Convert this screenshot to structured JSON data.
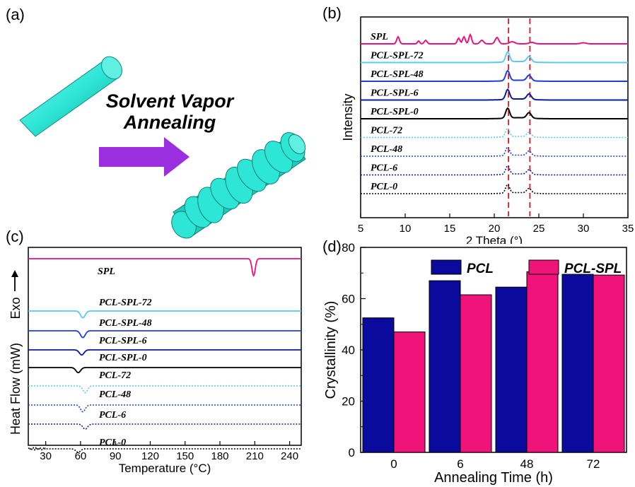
{
  "panels": {
    "a": "(a)",
    "b": "(b)",
    "c": "(c)",
    "d": "(d)"
  },
  "schematic": {
    "line1": "Solvent Vapor",
    "line2": "Annealing",
    "rod_color": "#2ee6d6",
    "arrow_color": "#9b2fe0"
  },
  "chart_data": [
    {
      "id": "b",
      "type": "line",
      "xlabel": "2 Theta (°)",
      "ylabel": "Intensity",
      "xlim": [
        5,
        35
      ],
      "xticks": [
        5,
        10,
        15,
        20,
        25,
        30,
        35
      ],
      "reference_lines": [
        21.6,
        24.0
      ],
      "series": [
        {
          "name": "SPL",
          "color": "#e8147a",
          "dashed": false,
          "offset": 10
        },
        {
          "name": "PCL-SPL-72",
          "color": "#5bc8f5",
          "dashed": false,
          "offset": 9
        },
        {
          "name": "PCL-SPL-48",
          "color": "#1e3fd6",
          "dashed": false,
          "offset": 8
        },
        {
          "name": "PCL-SPL-6",
          "color": "#0a1a9a",
          "dashed": false,
          "offset": 7
        },
        {
          "name": "PCL-SPL-0",
          "color": "#000000",
          "dashed": false,
          "offset": 6
        },
        {
          "name": "PCL-72",
          "color": "#5bc8f5",
          "dashed": true,
          "offset": 5
        },
        {
          "name": "PCL-48",
          "color": "#1e3fd6",
          "dashed": true,
          "offset": 4
        },
        {
          "name": "PCL-6",
          "color": "#0a1a9a",
          "dashed": true,
          "offset": 3
        },
        {
          "name": "PCL-0",
          "color": "#000000",
          "dashed": true,
          "offset": 2
        }
      ]
    },
    {
      "id": "c",
      "type": "line",
      "xlabel": "Temperature (°C)",
      "ylabel": "Heat Flow (mW)",
      "ylabel_exo": "Exo",
      "xlim": [
        15,
        250
      ],
      "xticks": [
        30,
        60,
        90,
        120,
        150,
        180,
        210,
        240
      ],
      "series": [
        {
          "name": "SPL",
          "color": "#e8147a",
          "dashed": false,
          "dip_x": 209,
          "depth": 10
        },
        {
          "name": "PCL-SPL-72",
          "color": "#5bc8f5",
          "dashed": false,
          "dip_x": 62,
          "depth": 4
        },
        {
          "name": "PCL-SPL-48",
          "color": "#1e3fd6",
          "dashed": false,
          "dip_x": 62,
          "depth": 4
        },
        {
          "name": "PCL-SPL-6",
          "color": "#0a1a9a",
          "dashed": false,
          "dip_x": 61,
          "depth": 3
        },
        {
          "name": "PCL-SPL-0",
          "color": "#000000",
          "dashed": false,
          "dip_x": 58,
          "depth": 3
        },
        {
          "name": "PCL-72",
          "color": "#5bc8f5",
          "dashed": true,
          "dip_x": 64,
          "depth": 4
        },
        {
          "name": "PCL-48",
          "color": "#1e3fd6",
          "dashed": true,
          "dip_x": 62,
          "depth": 4
        },
        {
          "name": "PCL-6",
          "color": "#0a1a9a",
          "dashed": true,
          "dip_x": 64,
          "depth": 3
        },
        {
          "name": "PCL-0",
          "color": "#000000",
          "dashed": true,
          "dip_x": 58,
          "depth": 2
        }
      ]
    },
    {
      "id": "d",
      "type": "bar",
      "xlabel": "Annealing Time (h)",
      "ylabel": "Crystallinity (%)",
      "categories": [
        "0",
        "6",
        "48",
        "72"
      ],
      "ylim": [
        0,
        80
      ],
      "yticks": [
        0,
        20,
        40,
        60,
        80
      ],
      "series": [
        {
          "name": "PCL",
          "color": "#0a0a9c",
          "values": [
            52.5,
            67,
            64.5,
            69.5
          ]
        },
        {
          "name": "PCL-SPL",
          "color": "#f0147a",
          "values": [
            47,
            61.5,
            70.5,
            69.2
          ]
        }
      ],
      "legend": "top"
    }
  ]
}
